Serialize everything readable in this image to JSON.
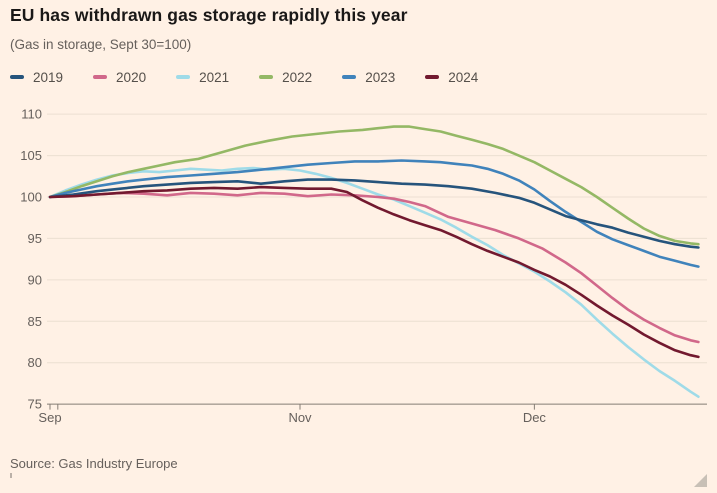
{
  "chart_data": {
    "type": "line",
    "title": "EU has withdrawn gas storage rapidly this year",
    "subtitle": "(Gas in storage, Sept 30=100)",
    "source": "Source: Gas Industry Europe",
    "x_unit": "days since Sep 30",
    "x_range_days": [
      0,
      83
    ],
    "ylim": [
      75,
      110
    ],
    "grid": true,
    "legend_position": "top",
    "colors": {
      "background": "#FFF1E5",
      "grid": "#ecdfd2",
      "baseline": "#857d75",
      "axis_text": "#66605C",
      "title_text": "#1a1817"
    },
    "y_axis": {
      "ticks": [
        75,
        80,
        85,
        90,
        95,
        100,
        105,
        110
      ],
      "tick_labels": [
        "75",
        "80",
        "85",
        "90",
        "95",
        "100",
        "105",
        "110"
      ]
    },
    "x_axis": {
      "tick_days": [
        0,
        1,
        32,
        62
      ],
      "labels": [
        {
          "text": "Sep",
          "day": 0
        },
        {
          "text": "Nov",
          "day": 32
        },
        {
          "text": "Dec",
          "day": 62
        }
      ]
    },
    "draw_order": [
      "2021",
      "2020",
      "2022",
      "2023",
      "2019",
      "2024"
    ],
    "series": [
      {
        "name": "2019",
        "color": "#26547c",
        "points": [
          [
            0,
            100
          ],
          [
            3,
            100.3
          ],
          [
            6,
            100.7
          ],
          [
            9,
            101
          ],
          [
            12,
            101.3
          ],
          [
            15,
            101.5
          ],
          [
            18,
            101.7
          ],
          [
            21,
            101.8
          ],
          [
            24,
            101.9
          ],
          [
            27,
            101.6
          ],
          [
            30,
            101.9
          ],
          [
            33,
            102.1
          ],
          [
            36,
            102.1
          ],
          [
            39,
            102
          ],
          [
            42,
            101.8
          ],
          [
            45,
            101.6
          ],
          [
            48,
            101.5
          ],
          [
            51,
            101.3
          ],
          [
            54,
            101
          ],
          [
            57,
            100.5
          ],
          [
            60,
            99.9
          ],
          [
            62,
            99.3
          ],
          [
            64,
            98.5
          ],
          [
            66,
            97.7
          ],
          [
            68,
            97.2
          ],
          [
            70,
            96.7
          ],
          [
            72,
            96.3
          ],
          [
            74,
            95.7
          ],
          [
            76,
            95.2
          ],
          [
            78,
            94.7
          ],
          [
            80,
            94.3
          ],
          [
            82,
            94
          ],
          [
            83,
            93.9
          ]
        ]
      },
      {
        "name": "2020",
        "color": "#d1688a",
        "points": [
          [
            0,
            100
          ],
          [
            3,
            100.1
          ],
          [
            6,
            100.3
          ],
          [
            9,
            100.5
          ],
          [
            12,
            100.4
          ],
          [
            15,
            100.2
          ],
          [
            18,
            100.5
          ],
          [
            21,
            100.4
          ],
          [
            24,
            100.2
          ],
          [
            27,
            100.5
          ],
          [
            30,
            100.4
          ],
          [
            33,
            100.1
          ],
          [
            36,
            100.3
          ],
          [
            39,
            100.2
          ],
          [
            42,
            100
          ],
          [
            44,
            99.8
          ],
          [
            46,
            99.4
          ],
          [
            48,
            98.9
          ],
          [
            51,
            97.6
          ],
          [
            54,
            96.8
          ],
          [
            57,
            96
          ],
          [
            60,
            95
          ],
          [
            63,
            93.8
          ],
          [
            66,
            92.1
          ],
          [
            68,
            90.8
          ],
          [
            70,
            89.3
          ],
          [
            72,
            87.8
          ],
          [
            74,
            86.4
          ],
          [
            76,
            85.2
          ],
          [
            78,
            84.2
          ],
          [
            80,
            83.3
          ],
          [
            82,
            82.7
          ],
          [
            83,
            82.5
          ]
        ]
      },
      {
        "name": "2021",
        "color": "#9fdbe8",
        "points": [
          [
            0,
            100
          ],
          [
            2,
            100.8
          ],
          [
            4,
            101.5
          ],
          [
            6,
            102.1
          ],
          [
            8,
            102.6
          ],
          [
            10,
            102.9
          ],
          [
            12,
            103.1
          ],
          [
            14,
            103
          ],
          [
            16,
            103.2
          ],
          [
            18,
            103.4
          ],
          [
            20,
            103.3
          ],
          [
            22,
            103.2
          ],
          [
            24,
            103.4
          ],
          [
            26,
            103.5
          ],
          [
            28,
            103.3
          ],
          [
            30,
            103.4
          ],
          [
            32,
            103.2
          ],
          [
            34,
            102.8
          ],
          [
            36,
            102.3
          ],
          [
            38,
            101.7
          ],
          [
            40,
            101
          ],
          [
            42,
            100.3
          ],
          [
            44,
            99.7
          ],
          [
            46,
            98.9
          ],
          [
            48,
            98.1
          ],
          [
            50,
            97.3
          ],
          [
            52,
            96.3
          ],
          [
            54,
            95.2
          ],
          [
            56,
            94.2
          ],
          [
            58,
            93
          ],
          [
            60,
            92
          ],
          [
            62,
            91
          ],
          [
            64,
            89.8
          ],
          [
            66,
            88.5
          ],
          [
            68,
            87
          ],
          [
            70,
            85.2
          ],
          [
            72,
            83.5
          ],
          [
            74,
            81.9
          ],
          [
            76,
            80.4
          ],
          [
            78,
            79
          ],
          [
            80,
            77.8
          ],
          [
            82,
            76.5
          ],
          [
            83,
            75.9
          ]
        ]
      },
      {
        "name": "2022",
        "color": "#94b865",
        "points": [
          [
            0,
            100
          ],
          [
            2,
            100.6
          ],
          [
            4,
            101.3
          ],
          [
            6,
            101.9
          ],
          [
            8,
            102.5
          ],
          [
            10,
            103
          ],
          [
            12,
            103.4
          ],
          [
            14,
            103.8
          ],
          [
            16,
            104.2
          ],
          [
            19,
            104.6
          ],
          [
            22,
            105.4
          ],
          [
            25,
            106.2
          ],
          [
            28,
            106.8
          ],
          [
            31,
            107.3
          ],
          [
            34,
            107.6
          ],
          [
            37,
            107.9
          ],
          [
            40,
            108.1
          ],
          [
            42,
            108.3
          ],
          [
            44,
            108.5
          ],
          [
            46,
            108.5
          ],
          [
            48,
            108.2
          ],
          [
            50,
            107.9
          ],
          [
            52,
            107.4
          ],
          [
            54,
            106.9
          ],
          [
            56,
            106.4
          ],
          [
            58,
            105.8
          ],
          [
            60,
            105
          ],
          [
            62,
            104.2
          ],
          [
            64,
            103.2
          ],
          [
            66,
            102.2
          ],
          [
            68,
            101.2
          ],
          [
            70,
            100
          ],
          [
            72,
            98.7
          ],
          [
            74,
            97.4
          ],
          [
            76,
            96.2
          ],
          [
            78,
            95.3
          ],
          [
            80,
            94.7
          ],
          [
            82,
            94.4
          ],
          [
            83,
            94.3
          ]
        ]
      },
      {
        "name": "2023",
        "color": "#4083bb",
        "points": [
          [
            0,
            100
          ],
          [
            2,
            100.5
          ],
          [
            4,
            100.9
          ],
          [
            6,
            101.3
          ],
          [
            8,
            101.6
          ],
          [
            10,
            101.9
          ],
          [
            12,
            102.1
          ],
          [
            15,
            102.4
          ],
          [
            18,
            102.6
          ],
          [
            21,
            102.8
          ],
          [
            24,
            103
          ],
          [
            27,
            103.3
          ],
          [
            30,
            103.6
          ],
          [
            33,
            103.9
          ],
          [
            36,
            104.1
          ],
          [
            39,
            104.3
          ],
          [
            42,
            104.3
          ],
          [
            45,
            104.4
          ],
          [
            48,
            104.3
          ],
          [
            50,
            104.2
          ],
          [
            52,
            104
          ],
          [
            54,
            103.8
          ],
          [
            56,
            103.4
          ],
          [
            58,
            102.8
          ],
          [
            60,
            102
          ],
          [
            62,
            100.9
          ],
          [
            64,
            99.5
          ],
          [
            66,
            98.2
          ],
          [
            68,
            97
          ],
          [
            70,
            95.8
          ],
          [
            72,
            94.9
          ],
          [
            74,
            94.2
          ],
          [
            76,
            93.5
          ],
          [
            78,
            92.8
          ],
          [
            80,
            92.3
          ],
          [
            82,
            91.8
          ],
          [
            83,
            91.6
          ]
        ]
      },
      {
        "name": "2024",
        "color": "#72192f",
        "points": [
          [
            0,
            100
          ],
          [
            3,
            100.1
          ],
          [
            6,
            100.3
          ],
          [
            9,
            100.5
          ],
          [
            12,
            100.7
          ],
          [
            15,
            100.8
          ],
          [
            18,
            101
          ],
          [
            21,
            101.1
          ],
          [
            24,
            101
          ],
          [
            27,
            101.2
          ],
          [
            30,
            101.1
          ],
          [
            33,
            101
          ],
          [
            36,
            101
          ],
          [
            38,
            100.6
          ],
          [
            40,
            99.6
          ],
          [
            42,
            98.7
          ],
          [
            44,
            97.9
          ],
          [
            46,
            97.2
          ],
          [
            48,
            96.6
          ],
          [
            50,
            96
          ],
          [
            52,
            95.2
          ],
          [
            54,
            94.3
          ],
          [
            56,
            93.5
          ],
          [
            58,
            92.8
          ],
          [
            60,
            92.1
          ],
          [
            62,
            91.2
          ],
          [
            64,
            90.4
          ],
          [
            66,
            89.4
          ],
          [
            68,
            88.2
          ],
          [
            70,
            86.9
          ],
          [
            72,
            85.7
          ],
          [
            74,
            84.6
          ],
          [
            76,
            83.4
          ],
          [
            78,
            82.4
          ],
          [
            80,
            81.5
          ],
          [
            82,
            80.9
          ],
          [
            83,
            80.7
          ]
        ]
      }
    ]
  }
}
